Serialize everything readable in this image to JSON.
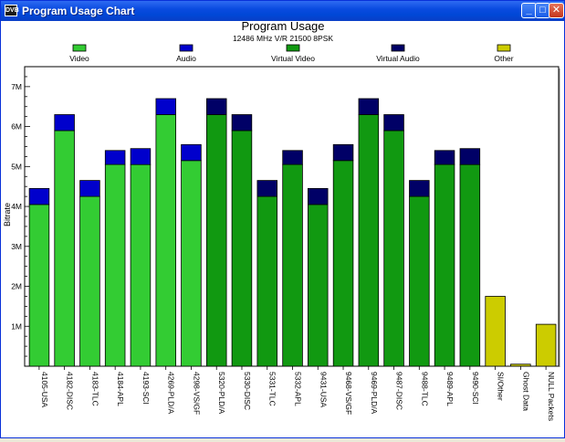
{
  "window": {
    "title": "Program Usage Chart",
    "icon_label": "DVB",
    "minimize_icon": "minimize-icon",
    "maximize_icon": "maximize-icon",
    "close_icon": "close-icon"
  },
  "chart_data": {
    "type": "bar",
    "stacked": true,
    "title": "Program Usage",
    "subtitle": "12486 MHz V/R 21500 8PSK",
    "xlabel": "",
    "ylabel": "Bitrate",
    "ylim": [
      0,
      7500000
    ],
    "yticks": [
      {
        "value": 1000000,
        "label": "1M"
      },
      {
        "value": 2000000,
        "label": "2M"
      },
      {
        "value": 3000000,
        "label": "3M"
      },
      {
        "value": 4000000,
        "label": "4M"
      },
      {
        "value": 5000000,
        "label": "5M"
      },
      {
        "value": 6000000,
        "label": "6M"
      },
      {
        "value": 7000000,
        "label": "7M"
      }
    ],
    "legend_position": "top",
    "legend": [
      {
        "name": "Video",
        "color": "#33cc33"
      },
      {
        "name": "Audio",
        "color": "#0000cc"
      },
      {
        "name": "Virtual Video",
        "color": "#119911"
      },
      {
        "name": "Virtual Audio",
        "color": "#000066"
      },
      {
        "name": "Other",
        "color": "#cccc00"
      }
    ],
    "categories": [
      "4105-USA",
      "4182-DISC",
      "4183-TLC",
      "4184-APL",
      "4193-SCI",
      "4269-PLD/A",
      "4298-VS/GF",
      "5320-PLD/A",
      "5330-DISC",
      "5331-TLC",
      "5332-APL",
      "9431-USA",
      "9468-VS/GF",
      "9469-PLD/A",
      "9487-DISC",
      "9488-TLC",
      "9489-APL",
      "9490-SCI",
      "SI/Other",
      "Ghost Data",
      "NULL Packets"
    ],
    "series": [
      {
        "name": "Video",
        "color": "#33cc33",
        "values": [
          4050000,
          5900000,
          4250000,
          5050000,
          5050000,
          6300000,
          5150000,
          0,
          0,
          0,
          0,
          0,
          0,
          0,
          0,
          0,
          0,
          0,
          0,
          0,
          0
        ]
      },
      {
        "name": "Audio",
        "color": "#0000cc",
        "values": [
          400000,
          400000,
          400000,
          350000,
          400000,
          400000,
          400000,
          0,
          0,
          0,
          0,
          0,
          0,
          0,
          0,
          0,
          0,
          0,
          0,
          0,
          0
        ]
      },
      {
        "name": "Virtual Video",
        "color": "#119911",
        "values": [
          0,
          0,
          0,
          0,
          0,
          0,
          0,
          6300000,
          5900000,
          4250000,
          5050000,
          4050000,
          5150000,
          6300000,
          5900000,
          4250000,
          5050000,
          5050000,
          0,
          0,
          0
        ]
      },
      {
        "name": "Virtual Audio",
        "color": "#000066",
        "values": [
          0,
          0,
          0,
          0,
          0,
          0,
          0,
          400000,
          400000,
          400000,
          350000,
          400000,
          400000,
          400000,
          400000,
          400000,
          350000,
          400000,
          0,
          0,
          0
        ]
      },
      {
        "name": "Other",
        "color": "#cccc00",
        "values": [
          0,
          0,
          0,
          0,
          0,
          0,
          0,
          0,
          0,
          0,
          0,
          0,
          0,
          0,
          0,
          0,
          0,
          0,
          1750000,
          50000,
          1050000
        ]
      }
    ]
  }
}
